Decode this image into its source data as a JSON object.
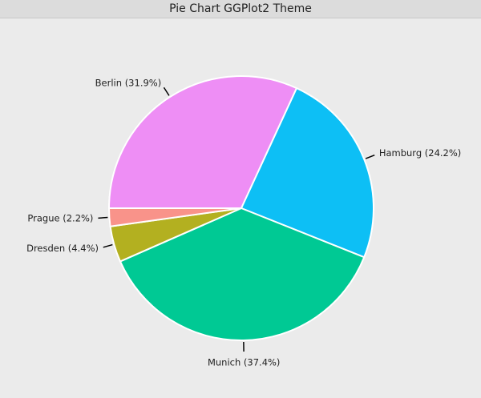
{
  "chart_data": {
    "type": "pie",
    "title": "Pie Chart GGPlot2 Theme",
    "categories": [
      "Berlin (31.9%)",
      "Hamburg (24.2%)",
      "Munich (37.4%)",
      "Dresden (4.4%)",
      "Prague (2.2%)"
    ],
    "values": [
      31.9,
      24.2,
      37.4,
      4.4,
      2.2
    ],
    "colors": [
      "#ee8ef5",
      "#0dbff5",
      "#00c994",
      "#b3b020",
      "#f9938a"
    ]
  }
}
